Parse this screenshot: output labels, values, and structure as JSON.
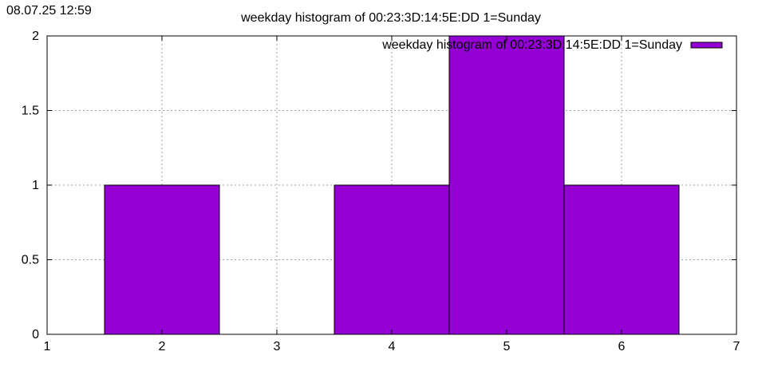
{
  "timestamp": "08.07.25 12:59",
  "chart_data": {
    "type": "bar",
    "title": "weekday histogram of 00:23:3D:14:5E:DD 1=Sunday",
    "xlabel": "",
    "ylabel": "",
    "xlim": [
      1,
      7
    ],
    "ylim": [
      0,
      2
    ],
    "x_ticks": [
      1,
      2,
      3,
      4,
      5,
      6,
      7
    ],
    "y_ticks": [
      0,
      0.5,
      1,
      1.5,
      2
    ],
    "bar_width": 1,
    "grid": true,
    "legend_position": "top-right",
    "series": [
      {
        "name": "weekday histogram of 00:23:3D:14:5E:DD 1=Sunday",
        "color": "#9400d3",
        "x": [
          2,
          4,
          5,
          6
        ],
        "values": [
          1,
          1,
          2,
          1
        ]
      }
    ]
  }
}
